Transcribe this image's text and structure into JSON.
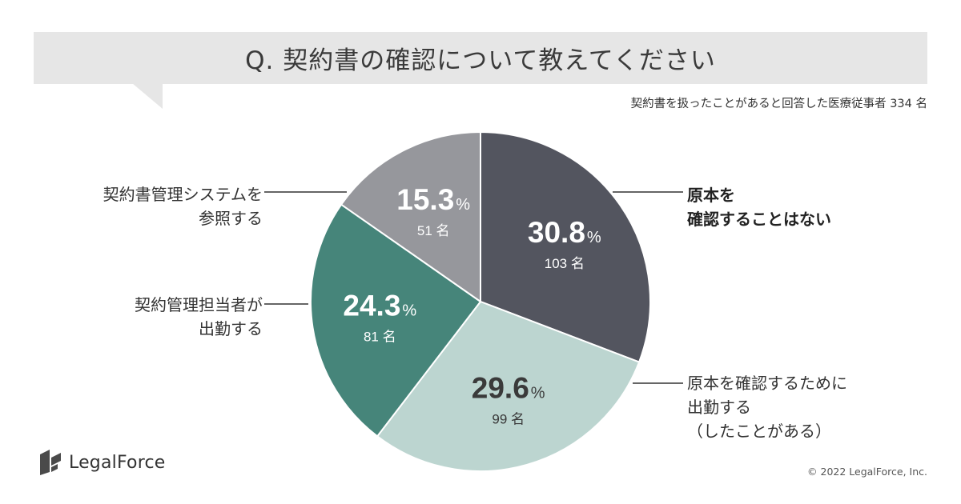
{
  "header": {
    "title": "Q. 契約書の確認について教えてください",
    "subtitle": "契約書を扱ったことがあると回答した医療従事者 334 名"
  },
  "chart_data": {
    "type": "pie",
    "title": "Q. 契約書の確認について教えてください",
    "total_label": "334 名",
    "slices": [
      {
        "label_lines": [
          "原本を",
          "確認することはない"
        ],
        "percent": 30.8,
        "percent_text": "30.8",
        "count_text": "103 名",
        "color": "#53555f",
        "value_color": "#ffffff"
      },
      {
        "label_lines": [
          "原本を確認するために",
          "出勤する",
          "（したことがある）"
        ],
        "percent": 29.6,
        "percent_text": "29.6",
        "count_text": "99 名",
        "color": "#bcd5d0",
        "value_color": "#3a3a3a"
      },
      {
        "label_lines": [
          "契約管理担当者が",
          "出勤する"
        ],
        "percent": 24.3,
        "percent_text": "24.3",
        "count_text": "81 名",
        "color": "#46857a",
        "value_color": "#ffffff"
      },
      {
        "label_lines": [
          "契約書管理システムを",
          "参照する"
        ],
        "percent": 15.3,
        "percent_text": "15.3",
        "count_text": "51 名",
        "color": "#96979c",
        "value_color": "#ffffff"
      }
    ],
    "percent_unit": "%"
  },
  "footer": {
    "logo_text": "LegalForce",
    "copyright": "© 2022 LegalForce, Inc."
  }
}
